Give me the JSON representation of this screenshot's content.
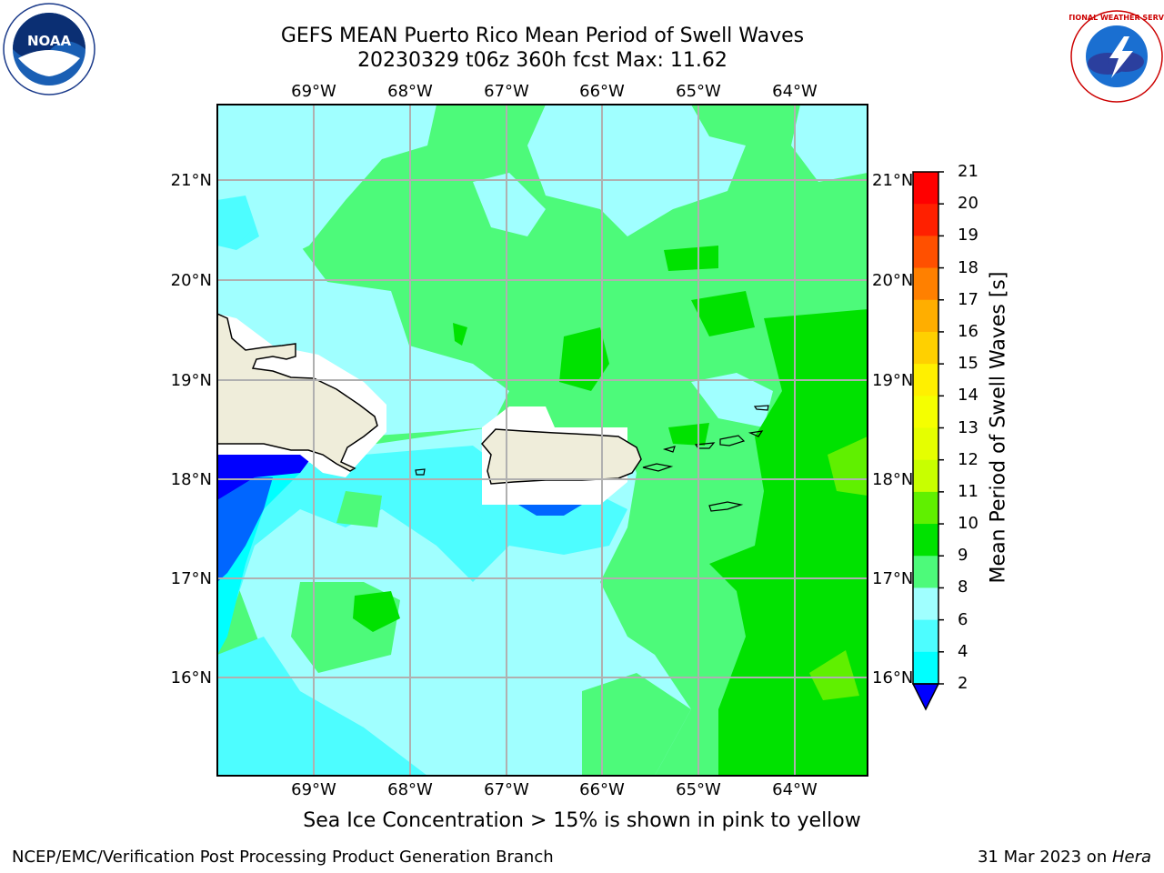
{
  "header": {
    "title_line1": "GEFS MEAN Puerto Rico Mean Period of Swell Waves",
    "title_line2": "20230329 t06z 360h fcst   Max: 11.62"
  },
  "map": {
    "lon_labels": [
      "69°W",
      "68°W",
      "67°W",
      "66°W",
      "65°W",
      "64°W"
    ],
    "lat_labels": [
      "21°N",
      "20°N",
      "19°N",
      "18°N",
      "17°N",
      "16°N"
    ],
    "colors": {
      "land": "#efedda",
      "c2_4": "#0066ff",
      "c4_6": "#00ffff",
      "c6_8": "#4dfdff",
      "c8_9": "#a0ffff",
      "c9_10": "#4dfa7a",
      "c10_11": "#00e200",
      "c11_12": "#60f000",
      "coast": "#000000",
      "grid": "#b0b0b0"
    }
  },
  "colorbar": {
    "title": "Mean Period of Swell Waves [s]",
    "ticks": [
      "21",
      "20",
      "19",
      "18",
      "17",
      "16",
      "15",
      "14",
      "13",
      "12",
      "11",
      "10",
      "9",
      "8",
      "6",
      "4",
      "2"
    ],
    "colors_top_to_bottom": [
      "#ff0000",
      "#ff2000",
      "#ff5000",
      "#ff8000",
      "#ffae00",
      "#ffd000",
      "#fff000",
      "#f5ff00",
      "#e5ff00",
      "#c8ff00",
      "#60f000",
      "#00e200",
      "#4dfa7a",
      "#a0ffff",
      "#4dfdff",
      "#00ffff",
      "#0066ff"
    ],
    "extend_color": "#0000ff"
  },
  "caption": "Sea Ice Concentration > 15% is shown in pink to yellow",
  "footer": {
    "left": "NCEP/EMC/Verification Post Processing Product Generation Branch",
    "right_prefix": "31 Mar 2023 on ",
    "right_host": "Hera"
  },
  "logos": {
    "noaa_text": "NOAA",
    "nws_text": "NATIONAL WEATHER SERVICE"
  }
}
